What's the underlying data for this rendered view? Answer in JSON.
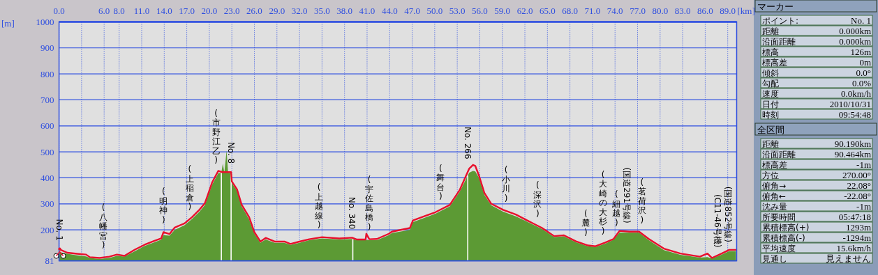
{
  "chart_data": [
    {
      "type": "area",
      "xlabel": "[km]",
      "ylabel": "[m]",
      "xlim": [
        0,
        90.19
      ],
      "ylim": [
        81,
        1000
      ],
      "grid": true,
      "xticks": [
        {
          "value": 0,
          "label": "0.0"
        },
        {
          "value": 3,
          "label": null
        },
        {
          "value": 6,
          "label": "6.0"
        },
        {
          "value": 8,
          "label": "8.0"
        },
        {
          "value": 11,
          "label": "11.0"
        },
        {
          "value": 14,
          "label": "14.0"
        },
        {
          "value": 17,
          "label": "17.0"
        },
        {
          "value": 20,
          "label": "20.0"
        },
        {
          "value": 23,
          "label": "23.0"
        },
        {
          "value": 26,
          "label": "26.0"
        },
        {
          "value": 29,
          "label": "29.0"
        },
        {
          "value": 32,
          "label": "32.0"
        },
        {
          "value": 35,
          "label": "35.0"
        },
        {
          "value": 38,
          "label": "38.0"
        },
        {
          "value": 41,
          "label": "41.0"
        },
        {
          "value": 44,
          "label": "44.0"
        },
        {
          "value": 47,
          "label": "47.0"
        },
        {
          "value": 50,
          "label": "50.0"
        },
        {
          "value": 53,
          "label": "53.0"
        },
        {
          "value": 56,
          "label": "56.0"
        },
        {
          "value": 59,
          "label": "59.0"
        },
        {
          "value": 62,
          "label": "62.0"
        },
        {
          "value": 65,
          "label": "65.0"
        },
        {
          "value": 68,
          "label": "68.0"
        },
        {
          "value": 71,
          "label": "71.0"
        },
        {
          "value": 74,
          "label": "74.0"
        },
        {
          "value": 77,
          "label": "77.0"
        },
        {
          "value": 80,
          "label": "80.0"
        },
        {
          "value": 83,
          "label": "83.0"
        },
        {
          "value": 86,
          "label": "86.0"
        },
        {
          "value": 89,
          "label": "89.0"
        }
      ],
      "yticks": [
        81,
        200,
        300,
        400,
        500,
        600,
        700,
        800,
        900,
        1000
      ],
      "series": [
        {
          "type": "area",
          "color": "#5c9a34",
          "x": [
            0,
            1.1,
            2.4,
            3.6,
            4.1,
            5.4,
            6.7,
            7.7,
            8.7,
            10.1,
            11.4,
            12.7,
            13.6,
            13.9,
            14.7,
            15.4,
            16.7,
            17.7,
            18.7,
            19.4,
            19.7,
            20.4,
            21.2,
            21.6,
            21.8,
            22.0,
            22.3,
            22.5,
            22.9,
            23.0,
            23.7,
            24.3,
            24.8,
            25.3,
            26.0,
            26.8,
            27.5,
            28.7,
            30.0,
            30.8,
            32.0,
            33.3,
            35.0,
            37.3,
            39.0,
            39.6,
            40.8,
            41.3,
            42.3,
            43.9,
            44.3,
            46.7,
            47.1,
            48.8,
            50.1,
            52.0,
            53.3,
            54.6,
            55.1,
            55.4,
            55.9,
            56.6,
            57.5,
            59.1,
            60.8,
            62.4,
            64.3,
            65.9,
            67.2,
            68.8,
            70.4,
            71.4,
            72.7,
            73.8,
            74.6,
            75.9,
            77.2,
            78.5,
            80.5,
            82.7,
            85.3,
            86.3,
            86.9,
            88.2,
            89.2,
            90.1
          ],
          "values": [
            115,
            108,
            102,
            98,
            92,
            88,
            92,
            100,
            97,
            118,
            138,
            152,
            162,
            180,
            178,
            200,
            218,
            242,
            270,
            295,
            318,
            375,
            418,
            420,
            455,
            420,
            505,
            420,
            418,
            380,
            350,
            290,
            266,
            240,
            185,
            150,
            163,
            150,
            150,
            142,
            150,
            160,
            167,
            163,
            165,
            160,
            160,
            160,
            160,
            180,
            188,
            200,
            230,
            248,
            262,
            290,
            345,
            420,
            427,
            425,
            400,
            335,
            295,
            270,
            252,
            230,
            203,
            172,
            175,
            152,
            137,
            134,
            147,
            162,
            190,
            189,
            189,
            160,
            122,
            104,
            93,
            95,
            90,
            105,
            118,
            118
          ]
        },
        {
          "type": "line",
          "color": "#e8102c",
          "x": [
            0,
            1.1,
            2.4,
            3.6,
            4.1,
            5.4,
            6.7,
            7.7,
            8.7,
            10.1,
            11.4,
            12.7,
            13.6,
            13.9,
            14.7,
            15.4,
            16.7,
            17.7,
            18.7,
            19.4,
            19.7,
            20.4,
            21.2,
            21.7,
            22.9,
            23.0,
            23.7,
            24.3,
            24.8,
            25.3,
            26.0,
            26.8,
            27.5,
            28.7,
            30.0,
            30.8,
            32.0,
            33.3,
            35.0,
            37.3,
            39.0,
            39.6,
            40.8,
            40.9,
            41.3,
            42.3,
            43.9,
            44.3,
            46.7,
            47.1,
            48.8,
            50.1,
            52.0,
            53.3,
            54.6,
            55.1,
            55.4,
            55.9,
            56.6,
            57.5,
            59.1,
            60.8,
            62.4,
            64.3,
            65.9,
            67.2,
            68.8,
            70.4,
            71.4,
            72.7,
            73.8,
            74.6,
            75.9,
            77.2,
            78.5,
            80.5,
            82.7,
            85.3,
            86.3,
            86.9,
            88.2,
            89.2,
            90.1
          ],
          "values": [
            126,
            112,
            108,
            105,
            95,
            92,
            97,
            105,
            100,
            124,
            143,
            158,
            167,
            191,
            184,
            209,
            225,
            249,
            278,
            302,
            326,
            384,
            427,
            422,
            422,
            386,
            355,
            297,
            273,
            249,
            191,
            155,
            169,
            155,
            155,
            146,
            155,
            164,
            172,
            167,
            170,
            163,
            163,
            185,
            164,
            165,
            185,
            193,
            207,
            236,
            254,
            268,
            296,
            352,
            436,
            450,
            446,
            408,
            343,
            301,
            277,
            259,
            235,
            207,
            176,
            179,
            156,
            140,
            137,
            151,
            165,
            196,
            193,
            193,
            165,
            128,
            109,
            97,
            109,
            92,
            109,
            123,
            123
          ]
        }
      ],
      "ref_lines": [
        {
          "axis": "x",
          "value": 21.6,
          "color": "#ffffff"
        },
        {
          "axis": "x",
          "value": 22.9,
          "color": "#ffffff"
        },
        {
          "axis": "x",
          "value": 39.1,
          "color": "#ffffff"
        },
        {
          "axis": "x",
          "value": 54.4,
          "color": "#ffffff"
        }
      ],
      "annotations": [
        {
          "text": "No. 1",
          "x": 0,
          "y": 126
        },
        {
          "text": "(八幡宮)",
          "x": 5.9,
          "y": 93
        },
        {
          "text": "(明神)",
          "x": 13.9,
          "y": 191
        },
        {
          "text": "(上稲倉)",
          "x": 17.4,
          "y": 240
        },
        {
          "text": "(市野江乙)",
          "x": 20.9,
          "y": 420
        },
        {
          "text": "No. 8",
          "x": 22.9,
          "y": 422
        },
        {
          "text": "(上越線)",
          "x": 34.6,
          "y": 170
        },
        {
          "text": "No. 340",
          "x": 39.0,
          "y": 170
        },
        {
          "text": "(宇佐島橋)",
          "x": 41.3,
          "y": 164
        },
        {
          "text": "(舞台)",
          "x": 50.8,
          "y": 280
        },
        {
          "text": "No. 266",
          "x": 54.4,
          "y": 440
        },
        {
          "text": "(小川)",
          "x": 59.5,
          "y": 273
        },
        {
          "text": "(深沢)",
          "x": 63.7,
          "y": 215
        },
        {
          "text": "(麓)",
          "x": 70.1,
          "y": 142
        },
        {
          "text": "(大崎の大杉)",
          "x": 72.4,
          "y": 148
        },
        {
          "text": "(細越)",
          "x": 74.2,
          "y": 180
        },
        {
          "text": "(国道291号線)",
          "x": 75.6,
          "y": 193
        },
        {
          "text": "(茗荷沢)",
          "x": 77.6,
          "y": 190
        },
        {
          "text": "(C11-46号機)",
          "x": 87.6,
          "y": 100
        },
        {
          "text": "(国道852号線)",
          "x": 89.0,
          "y": 120
        }
      ]
    },
    {
      "type": "other",
      "title": "マーカー",
      "annotations": [
        "ポイント:",
        "No. 1",
        "距離",
        "0.000km",
        "沿面距離",
        "0.000km",
        "標高",
        "126m",
        "標高差",
        "0m",
        "傾斜",
        "0.0°",
        "勾配",
        "0.0%",
        "速度",
        "0.0km/h",
        "日付",
        "2010/10/31",
        "時刻",
        "09:54:48"
      ]
    },
    {
      "type": "other",
      "title": "全区間",
      "annotations": [
        "距離",
        "90.190km",
        "沿面距離",
        "90.464km",
        "標高差",
        "-1m",
        "方位",
        "270.00°",
        "俯角→",
        "22.08°",
        "俯角←",
        "-22.08°",
        "沈み量",
        "-1m",
        "所要時間",
        "05:47:18",
        "累積標高(+)",
        "1293m",
        "累積標高(-)",
        "-1294m",
        "平均速度",
        "15.6km/h",
        "見通し",
        "見えません"
      ]
    }
  ]
}
